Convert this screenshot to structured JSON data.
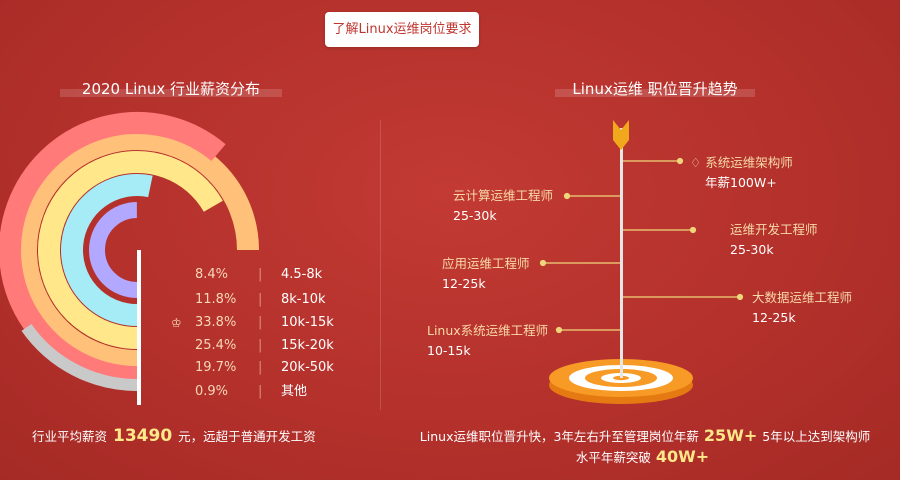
{
  "top_button": "了解Linux运维岗位要求",
  "left": {
    "title": "2020 Linux 行业薪资分布",
    "legend": [
      {
        "pct": "8.4%",
        "range": "4.5-8k",
        "top": false
      },
      {
        "pct": "11.8%",
        "range": "8k-10k",
        "top": false
      },
      {
        "pct": "33.8%",
        "range": "10k-15k",
        "top": true
      },
      {
        "pct": "25.4%",
        "range": "15k-20k",
        "top": false
      },
      {
        "pct": "19.7%",
        "range": "20k-50k",
        "top": false
      },
      {
        "pct": "0.9%",
        "range": "其他",
        "top": false
      }
    ],
    "summary_prefix": "行业平均薪资",
    "summary_value": "13490",
    "summary_suffix": "元，远超于普通开发工资"
  },
  "right": {
    "title": "Linux运维 职位晋升趋势",
    "careers": [
      {
        "name": "系统运维架构师",
        "salary": "年薪100W+",
        "side": "right",
        "icon": "diamond-icon"
      },
      {
        "name": "云计算运维工程师",
        "salary": "25-30k",
        "side": "left"
      },
      {
        "name": "运维开发工程师",
        "salary": "25-30k",
        "side": "right"
      },
      {
        "name": "应用运维工程师",
        "salary": "12-25k",
        "side": "left"
      },
      {
        "name": "大数据运维工程师",
        "salary": "12-25k",
        "side": "right"
      },
      {
        "name": "Linux系统运维工程师",
        "salary": "10-15k",
        "side": "left"
      }
    ],
    "summary_line1_a": "Linux运维职位晋升快，3年左右升至管理岗位年薪",
    "summary_line1_value": "25W+",
    "summary_line1_b": "5年以上达到架构师",
    "summary_line2_a": "水平年薪突破",
    "summary_line2_value": "40W+"
  },
  "chart_data": {
    "type": "pie",
    "variant": "radial-bar",
    "categories": [
      "4.5-8k",
      "8k-10k",
      "10k-15k",
      "15k-20k",
      "20k-50k",
      "其他"
    ],
    "values": [
      8.4,
      11.8,
      33.8,
      25.4,
      19.7,
      0.9
    ],
    "title": "2020 Linux 行业薪资分布",
    "colors": [
      "#b3a8ff",
      "#a5ecf7",
      "#ffc17a",
      "#ffe78a",
      "#ff7a78",
      "#c9c9c9"
    ]
  }
}
